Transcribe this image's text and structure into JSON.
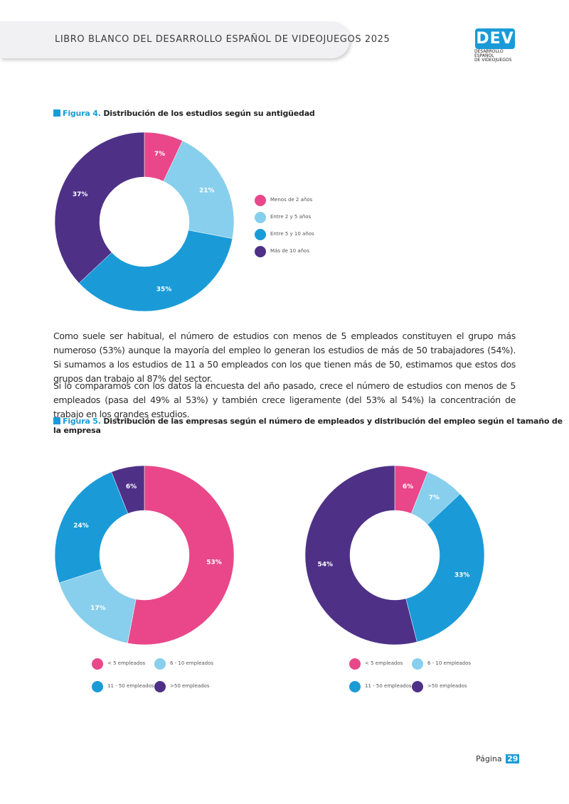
{
  "header": {
    "title": "LIBRO BLANCO DEL DESARROLLO ESPAÑOL DE VIDEOJUEGOS 2025"
  },
  "logo": {
    "mark": "DEV",
    "line1": "DESARROLLO ESPAÑOL",
    "line2": "DE VIDEOJUEGOS"
  },
  "figure4": {
    "num": "Figura 4.",
    "caption": "Distribución de los estudios según su antigüedad"
  },
  "paragraphs": [
    "Como suele ser habitual, el número de estudios con menos de 5 empleados constituyen el grupo más numeroso (53%) aunque la mayoría del empleo lo generan los estudios de más de 50 trabajadores (54%). Si sumamos a los estudios de 11 a 50 empleados con los que tienen más de 50, estimamos que estos dos grupos dan trabajo al 87% del sector.",
    "Si lo comparamos con los datos la encuesta del año pasado, crece el número de estudios con menos de 5 empleados (pasa del 49% al 53%) y también crece ligeramente (del 53% al 54%) la concentración de trabajo en los grandes estudios."
  ],
  "figure5": {
    "num": "Figura 5.",
    "caption": "Distribución de las empresas según el número de empleados y distribución del empleo según el tamaño de la empresa"
  },
  "page": {
    "label": "Página",
    "number": "29"
  },
  "colors": {
    "pink": "#e9478a",
    "light_blue": "#87cfec",
    "blue": "#1a9bd8",
    "purple": "#4e3187",
    "accent": "#1a9bd8"
  },
  "chart_data": [
    {
      "type": "pie",
      "title": "Distribución de los estudios según su antigüedad",
      "categories": [
        "Menos de 2 años",
        "Entre 2 y 5 años",
        "Entre 5 y 10 años",
        "Más de 10 años"
      ],
      "values": [
        7,
        21,
        35,
        37
      ],
      "labels": [
        "7%",
        "21%",
        "35%",
        "37%"
      ],
      "colors": [
        "#e9478a",
        "#87cfec",
        "#1a9bd8",
        "#4e3187"
      ],
      "legend": "right"
    },
    {
      "type": "pie",
      "title": "Distribución de las empresas según el número de empleados",
      "categories": [
        "< 5  empleados",
        "6 - 10 empleados",
        "11 - 50 empleados",
        ">50 empleados"
      ],
      "values": [
        53,
        17,
        24,
        6
      ],
      "labels": [
        "53%",
        "17%",
        "24%",
        "6%"
      ],
      "colors": [
        "#e9478a",
        "#87cfec",
        "#1a9bd8",
        "#4e3187"
      ],
      "legend": "bottom"
    },
    {
      "type": "pie",
      "title": "Distribución del empleo según el tamaño de la empresa",
      "categories": [
        "< 5  empleados",
        "6 - 10 empleados",
        "11 - 50 empleados",
        ">50 empleados"
      ],
      "values": [
        6,
        7,
        33,
        54
      ],
      "labels": [
        "6%",
        "7%",
        "33%",
        "54%"
      ],
      "colors": [
        "#e9478a",
        "#87cfec",
        "#1a9bd8",
        "#4e3187"
      ],
      "legend": "bottom"
    }
  ]
}
